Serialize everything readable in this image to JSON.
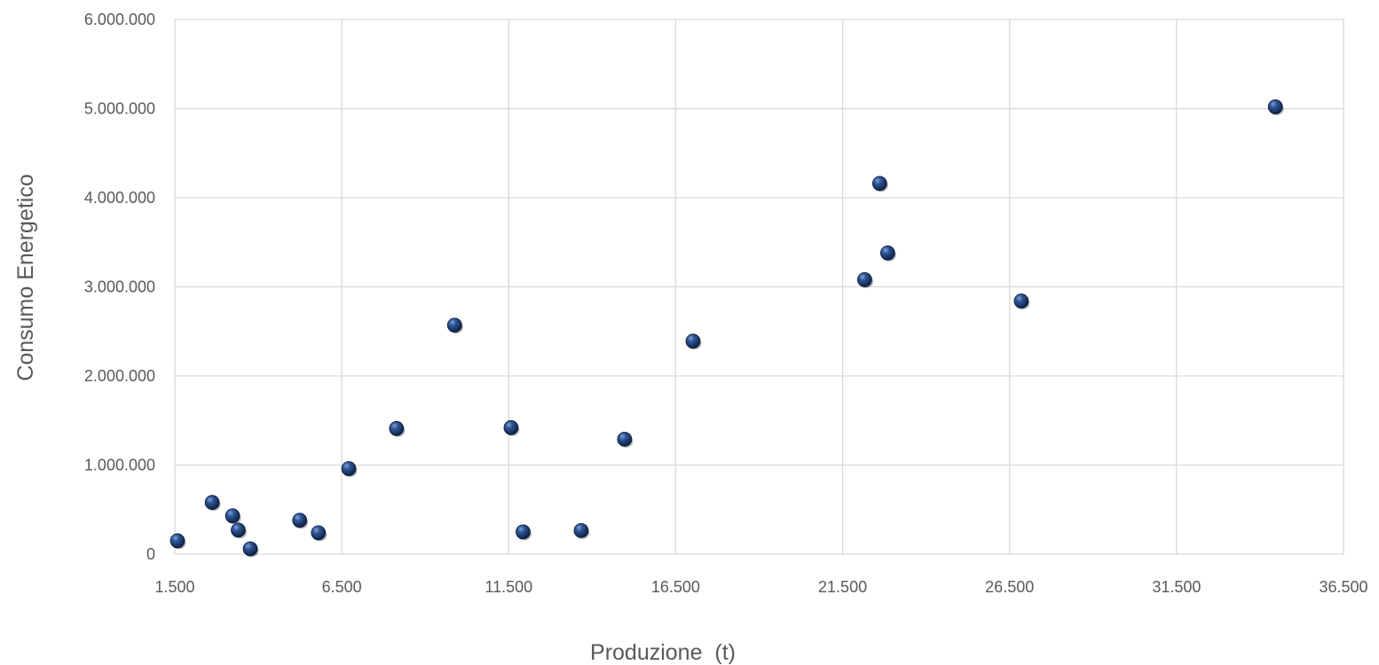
{
  "chart_data": {
    "type": "scatter",
    "title": "",
    "xlabel": "Produzione  (t)",
    "ylabel": "Consumo Energetico",
    "xlim": [
      1500,
      36500
    ],
    "ylim": [
      0,
      6000000
    ],
    "x_ticks": [
      1500,
      6500,
      11500,
      16500,
      21500,
      26500,
      31500,
      36500
    ],
    "y_ticks": [
      0,
      1000000,
      2000000,
      3000000,
      4000000,
      5000000,
      6000000
    ],
    "x_tick_labels": [
      "1.500",
      "6.500",
      "11.500",
      "16.500",
      "21.500",
      "26.500",
      "31.500",
      "36.500"
    ],
    "y_tick_labels": [
      "0",
      "1.000.000",
      "2.000.000",
      "3.000.000",
      "4.000.000",
      "5.000.000",
      "6.000.000"
    ],
    "grid": true,
    "legend": "none",
    "series": [
      {
        "marker_color": "#1f3f74",
        "points": [
          {
            "x": 1580,
            "y": 150000
          },
          {
            "x": 2620,
            "y": 580000
          },
          {
            "x": 3230,
            "y": 430000
          },
          {
            "x": 3400,
            "y": 270000
          },
          {
            "x": 3760,
            "y": 60000
          },
          {
            "x": 5240,
            "y": 380000
          },
          {
            "x": 5800,
            "y": 240000
          },
          {
            "x": 6710,
            "y": 960000
          },
          {
            "x": 8140,
            "y": 1410000
          },
          {
            "x": 9880,
            "y": 2570000
          },
          {
            "x": 11570,
            "y": 1420000
          },
          {
            "x": 11930,
            "y": 250000
          },
          {
            "x": 13670,
            "y": 265000
          },
          {
            "x": 14970,
            "y": 1290000
          },
          {
            "x": 17020,
            "y": 2390000
          },
          {
            "x": 22160,
            "y": 3080000
          },
          {
            "x": 22610,
            "y": 4160000
          },
          {
            "x": 22850,
            "y": 3380000
          },
          {
            "x": 26850,
            "y": 2840000
          },
          {
            "x": 34460,
            "y": 5020000
          }
        ]
      }
    ]
  }
}
